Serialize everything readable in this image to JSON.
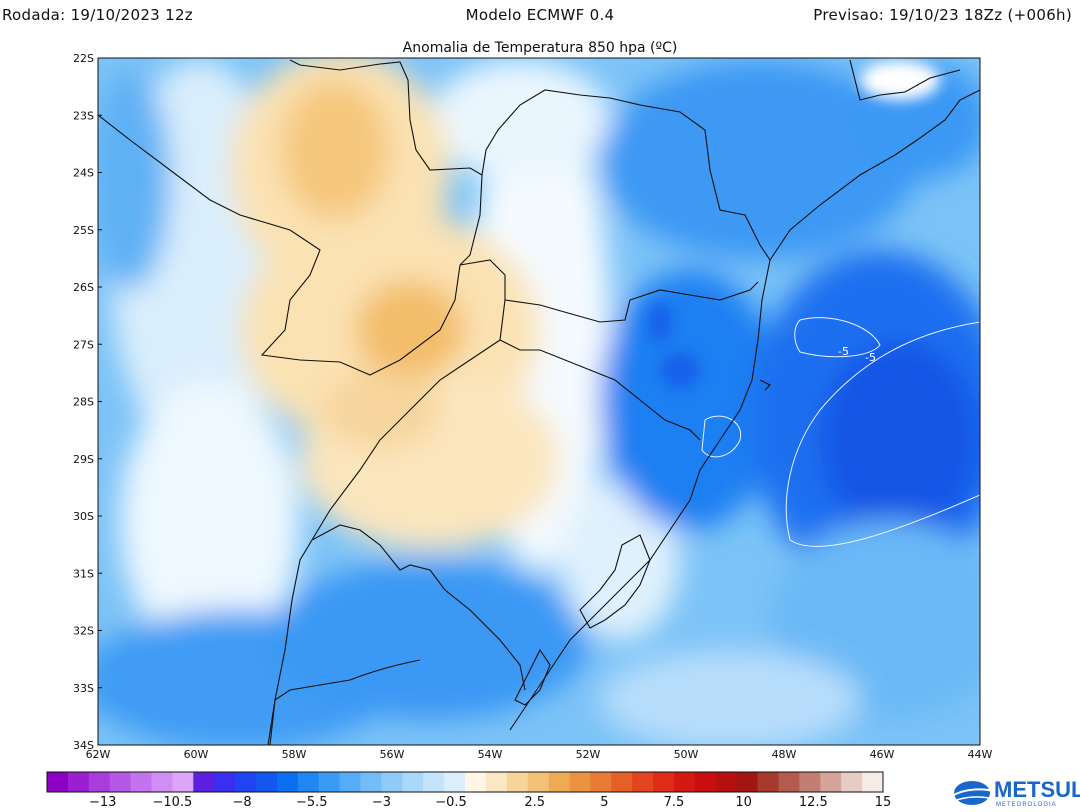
{
  "header": {
    "left": "Rodada: 19/10/2023 12z",
    "center": "Modelo ECMWF 0.4",
    "right": "Previsao: 19/10/23 18Zz (+006h)"
  },
  "map": {
    "title": "Anomalia de Temperatura 850 hpa (ºC)",
    "lat_labels": [
      "22S",
      "23S",
      "24S",
      "25S",
      "26S",
      "27S",
      "28S",
      "29S",
      "30S",
      "31S",
      "32S",
      "33S",
      "34S"
    ],
    "lon_labels": [
      "62W",
      "60W",
      "58W",
      "56W",
      "54W",
      "52W",
      "50W",
      "48W",
      "46W",
      "44W"
    ],
    "contour_labels": [
      "-5",
      "-5"
    ]
  },
  "colorbar": {
    "labels": [
      "-13",
      "-10.5",
      "-8",
      "-5.5",
      "-3",
      "-0.5",
      "2.5",
      "5",
      "7.5",
      "10",
      "12.5",
      "15"
    ],
    "colors": [
      "#8b00c4",
      "#9a1fd0",
      "#a83ddc",
      "#b658e6",
      "#c373ee",
      "#d08ef4",
      "#dba6f8",
      "#5a1fe0",
      "#3a2ff0",
      "#2044f2",
      "#1456f0",
      "#0a6ef0",
      "#1f86f3",
      "#3a9bf5",
      "#56acf6",
      "#72bdf7",
      "#8ecbf8",
      "#a9d8fa",
      "#c3e4fb",
      "#dceffd",
      "#fff6e6",
      "#fbe7c2",
      "#f7d49a",
      "#f3c077",
      "#eeab55",
      "#ea9440",
      "#e87a33",
      "#e55f28",
      "#e2441f",
      "#df2b18",
      "#d41812",
      "#c80e0e",
      "#b5100f",
      "#a21512",
      "#a63a2e",
      "#b35b50",
      "#c27e73",
      "#d4a49a",
      "#e7cbc4",
      "#f7ebe6"
    ]
  },
  "legend_colors": {
    "cold_strong": "#1550e8",
    "cold_mid": "#2f8ff3",
    "cold_light": "#8ecbf8",
    "neutral": "#ffffff",
    "warm_light": "#fbe0b0",
    "warm_mid": "#f3c077"
  },
  "logo": {
    "name": "METSUL",
    "tagline": "METEOROLOGIA"
  }
}
